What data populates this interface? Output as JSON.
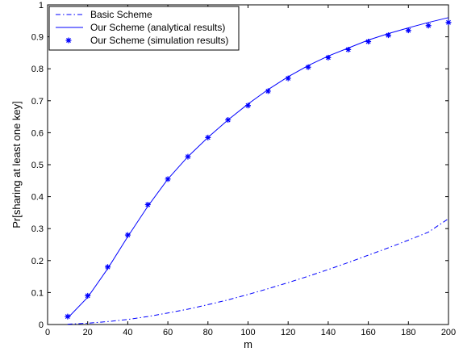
{
  "chart_data": {
    "type": "line",
    "title": "",
    "xlabel": "m",
    "ylabel": "Pr[sharing at least one key]",
    "xlim": [
      0,
      200
    ],
    "ylim": [
      0,
      1
    ],
    "xticks": [
      0,
      20,
      40,
      60,
      80,
      100,
      120,
      140,
      160,
      180,
      200
    ],
    "yticks": [
      0,
      0.1,
      0.2,
      0.3,
      0.4,
      0.5,
      0.6,
      0.7,
      0.8,
      0.9,
      1
    ],
    "xtick_labels": [
      "0",
      "20",
      "40",
      "60",
      "80",
      "100",
      "120",
      "140",
      "160",
      "180",
      "200"
    ],
    "ytick_labels": [
      "0",
      "0.1",
      "0.2",
      "0.3",
      "0.4",
      "0.5",
      "0.6",
      "0.7",
      "0.8",
      "0.9",
      "1"
    ],
    "grid": false,
    "legend_position": "top-left",
    "color": "#0000ff",
    "series": [
      {
        "name": "Basic Scheme",
        "style": "dash-dot",
        "x": [
          10,
          20,
          30,
          40,
          50,
          60,
          70,
          80,
          90,
          100,
          110,
          120,
          130,
          140,
          150,
          160,
          170,
          180,
          190,
          200
        ],
        "y": [
          0.001,
          0.004,
          0.009,
          0.016,
          0.025,
          0.036,
          0.048,
          0.062,
          0.077,
          0.094,
          0.112,
          0.131,
          0.151,
          0.172,
          0.194,
          0.217,
          0.24,
          0.264,
          0.289,
          0.331
        ]
      },
      {
        "name": "Our Scheme (analytical results)",
        "style": "solid",
        "x": [
          10,
          20,
          30,
          40,
          50,
          60,
          70,
          80,
          90,
          100,
          110,
          120,
          130,
          140,
          150,
          160,
          170,
          180,
          190,
          200
        ],
        "y": [
          0.02,
          0.085,
          0.175,
          0.275,
          0.37,
          0.455,
          0.525,
          0.585,
          0.64,
          0.69,
          0.735,
          0.775,
          0.81,
          0.84,
          0.865,
          0.89,
          0.91,
          0.928,
          0.945,
          0.96
        ]
      },
      {
        "name": "Our Scheme (simulation results)",
        "style": "markers",
        "marker": "asterisk",
        "x": [
          10,
          20,
          30,
          40,
          50,
          60,
          70,
          80,
          90,
          100,
          110,
          120,
          130,
          140,
          150,
          160,
          170,
          180,
          190,
          200
        ],
        "y": [
          0.025,
          0.09,
          0.18,
          0.28,
          0.375,
          0.455,
          0.525,
          0.585,
          0.64,
          0.685,
          0.73,
          0.77,
          0.805,
          0.835,
          0.86,
          0.885,
          0.905,
          0.92,
          0.935,
          0.945
        ]
      }
    ]
  }
}
